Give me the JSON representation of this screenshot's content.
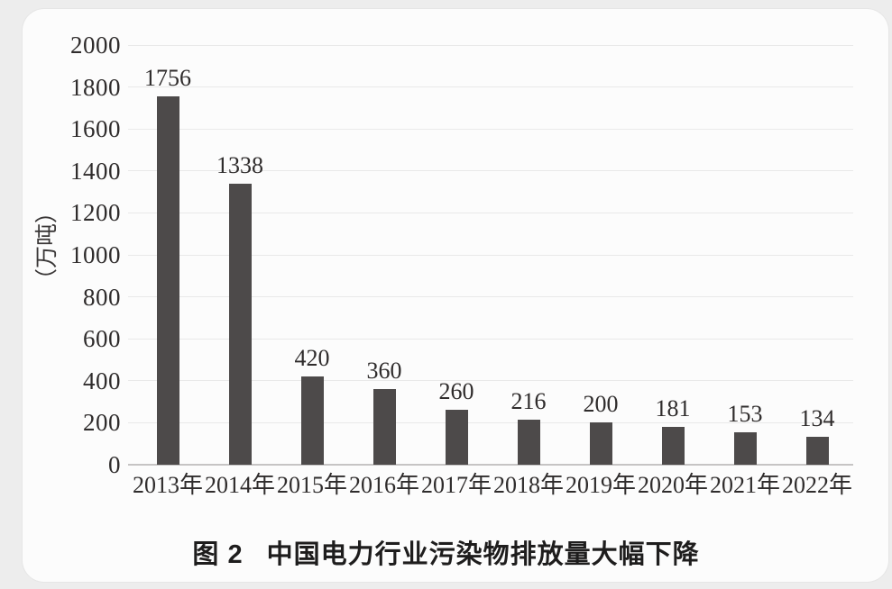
{
  "figure": {
    "caption_label": "图 2",
    "caption_text": "中国电力行业污染物排放量大幅下降"
  },
  "chart_data": {
    "type": "bar",
    "title": "图 2 中国电力行业污染物排放量大幅下降",
    "categories": [
      "2013年",
      "2014年",
      "2015年",
      "2016年",
      "2017年",
      "2018年",
      "2019年",
      "2020年",
      "2021年",
      "2022年"
    ],
    "values": [
      1756,
      1338,
      420,
      360,
      260,
      216,
      200,
      181,
      153,
      134
    ],
    "xlabel": "",
    "ylabel": "（万吨）",
    "ylim": [
      0,
      2000
    ],
    "ytick_step": 200,
    "yticks": [
      0,
      200,
      400,
      600,
      800,
      1000,
      1200,
      1400,
      1600,
      1800,
      2000
    ],
    "grid": true,
    "legend_position": "none",
    "value_labels": true,
    "colors": {
      "bar": "#4d4a4a",
      "text": "#2f2c2c",
      "gridline": "#e9e9e9",
      "axis_line": "#c6c4c4",
      "card_background": "#fcfcfc",
      "page_background": "#ededed"
    }
  }
}
